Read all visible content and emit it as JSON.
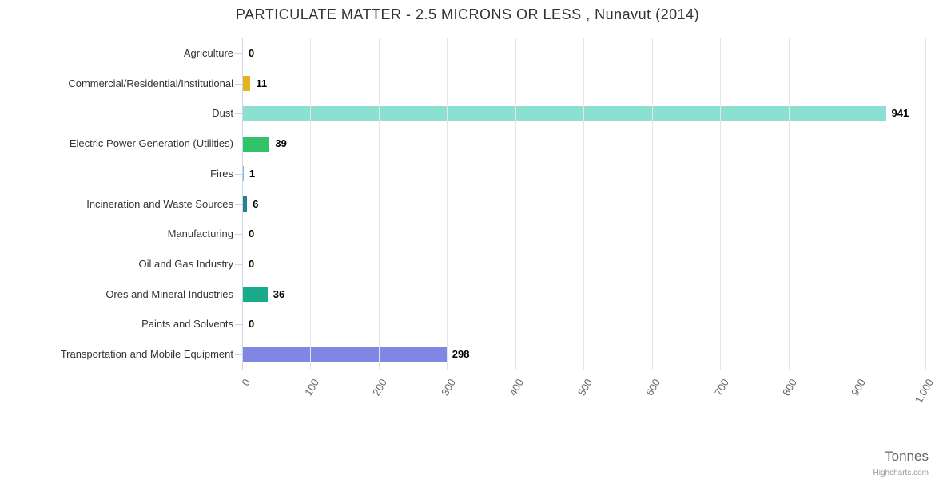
{
  "chart_data": {
    "type": "bar",
    "orientation": "horizontal",
    "title": "PARTICULATE MATTER - 2.5 MICRONS OR LESS , Nunavut (2014)",
    "categories": [
      "Agriculture",
      "Commercial/Residential/Institutional",
      "Dust",
      "Electric Power Generation (Utilities)",
      "Fires",
      "Incineration and Waste Sources",
      "Manufacturing",
      "Oil and Gas Industry",
      "Ores and Mineral Industries",
      "Paints and Solvents",
      "Transportation and Mobile Equipment"
    ],
    "values": [
      0,
      11,
      941,
      39,
      1,
      6,
      0,
      0,
      36,
      0,
      298
    ],
    "data_labels": [
      "0",
      "11",
      "941",
      "39",
      "1",
      "6",
      "0",
      "0",
      "36",
      "0",
      "298"
    ],
    "colors": [
      "#7cb5ec",
      "#e8b21d",
      "#8be0d2",
      "#31c36a",
      "#7cb5ec",
      "#27808e",
      "#7cb5ec",
      "#7cb5ec",
      "#19aa8c",
      "#7cb5ec",
      "#7f86e3"
    ],
    "xlabel": "Tonnes",
    "xlim": [
      0,
      1000
    ],
    "x_ticks": [
      "0",
      "100",
      "200",
      "300",
      "400",
      "500",
      "600",
      "700",
      "800",
      "900",
      "1,000"
    ],
    "x_tick_values": [
      0,
      100,
      200,
      300,
      400,
      500,
      600,
      700,
      800,
      900,
      1000
    ],
    "grid": true,
    "legend": false,
    "grid_color": "#e6e6e6",
    "axis_color": "#ccd6eb",
    "title_color": "#333333",
    "label_color": "#333333",
    "tick_label_color": "#666666"
  },
  "credits": "Highcharts.com"
}
